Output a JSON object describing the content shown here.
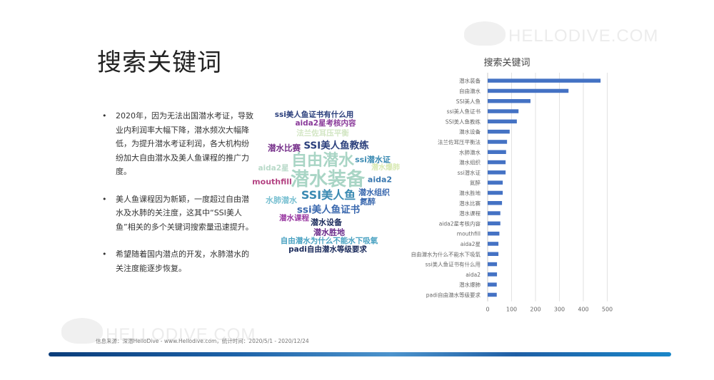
{
  "page": {
    "title": "搜索关键词",
    "watermark": "HELLODIVE.COM",
    "source": "信息来源：深潜HelloDive - www.Hellodive.com，统计时间：2020/5/1 - 2020/12/24"
  },
  "bullets": [
    "2020年，因为无法出国潜水考证，导致业内利润率大幅下降，潜水频次大幅降低，为提升潜水考证利润，各大机构纷纷加大自由潜水及美人鱼课程的推广力度。",
    "美人鱼课程因为新颖，一度超过自由潜水及水肺的关注度，这其中“SSI美人鱼”相关的多个关键词搜索量迅速提升。",
    "希望随着国内潜点的开发，水肺潜水的关注度能逐步恢复。"
  ],
  "bullet_symbol": "•",
  "word_cloud": [
    {
      "text": "ssi美人鱼证书有什么用",
      "color": "#2b3f7c"
    },
    {
      "text": "aida2星考核内容",
      "color": "#8a3a9a"
    },
    {
      "text": "法兰佐耳压平衡",
      "color": "#d3e6c4"
    },
    {
      "text": "潜水比赛",
      "color": "#76308a"
    },
    {
      "text": "SSI美人鱼教练",
      "color": "#2b3f7c"
    },
    {
      "text": "自由潜水",
      "color": "#a9d5c5"
    },
    {
      "text": "ssi潜水证",
      "color": "#3a8ab2"
    },
    {
      "text": "aida2星",
      "color": "#b9dac9"
    },
    {
      "text": "潜水爆肺",
      "color": "#d8e9b3"
    },
    {
      "text": "潜水装备",
      "color": "#a9d5c5"
    },
    {
      "text": "mouthfill",
      "color": "#b34282"
    },
    {
      "text": "aida2",
      "color": "#3a78b0"
    },
    {
      "text": "SSI美人鱼",
      "color": "#3a8ab2"
    },
    {
      "text": "潜水组织",
      "color": "#3a68ae"
    },
    {
      "text": "氮醉",
      "color": "#3a68ae"
    },
    {
      "text": "水肺潜水",
      "color": "#7bc1d2"
    },
    {
      "text": "ssi美人鱼证书",
      "color": "#3a68ae"
    },
    {
      "text": "潜水课程",
      "color": "#9a3aa2"
    },
    {
      "text": "潜水设备",
      "color": "#1b2b5c"
    },
    {
      "text": "潜水胜地",
      "color": "#6a2a8a"
    },
    {
      "text": "自由潜水为什么不能水下吸氧",
      "color": "#4aa2c2"
    },
    {
      "text": "padi自由潜水等级要求",
      "color": "#1b2b5c"
    }
  ],
  "chart_data": {
    "type": "bar",
    "orientation": "horizontal",
    "title": "搜索关键词",
    "categories": [
      "潜水装备",
      "自由潜水",
      "SSI美人鱼",
      "ssi美人鱼证书",
      "SSI美人鱼教练",
      "潜水设备",
      "法兰佐耳压平衡法",
      "水肺潜水",
      "潜水组织",
      "ssi潜水证",
      "氮醉",
      "潜水胜地",
      "潜水比赛",
      "潜水课程",
      "aida2星考核内容",
      "mouthfill",
      "aida2星",
      "自由潜水为什么不能水下吸氧",
      "ssi美人鱼证书有什么用",
      "aida2",
      "潜水爆肺",
      "padi自由潜水等级要求"
    ],
    "values": [
      472,
      338,
      179,
      129,
      122,
      92,
      81,
      77,
      75,
      75,
      63,
      63,
      60,
      53,
      53,
      49,
      45,
      45,
      39,
      39,
      38,
      38
    ],
    "xlim": [
      0,
      500
    ],
    "xticks": [
      "0",
      "100",
      "200",
      "300",
      "400",
      "500"
    ],
    "grid": true,
    "bar_color": "#4472c4"
  }
}
